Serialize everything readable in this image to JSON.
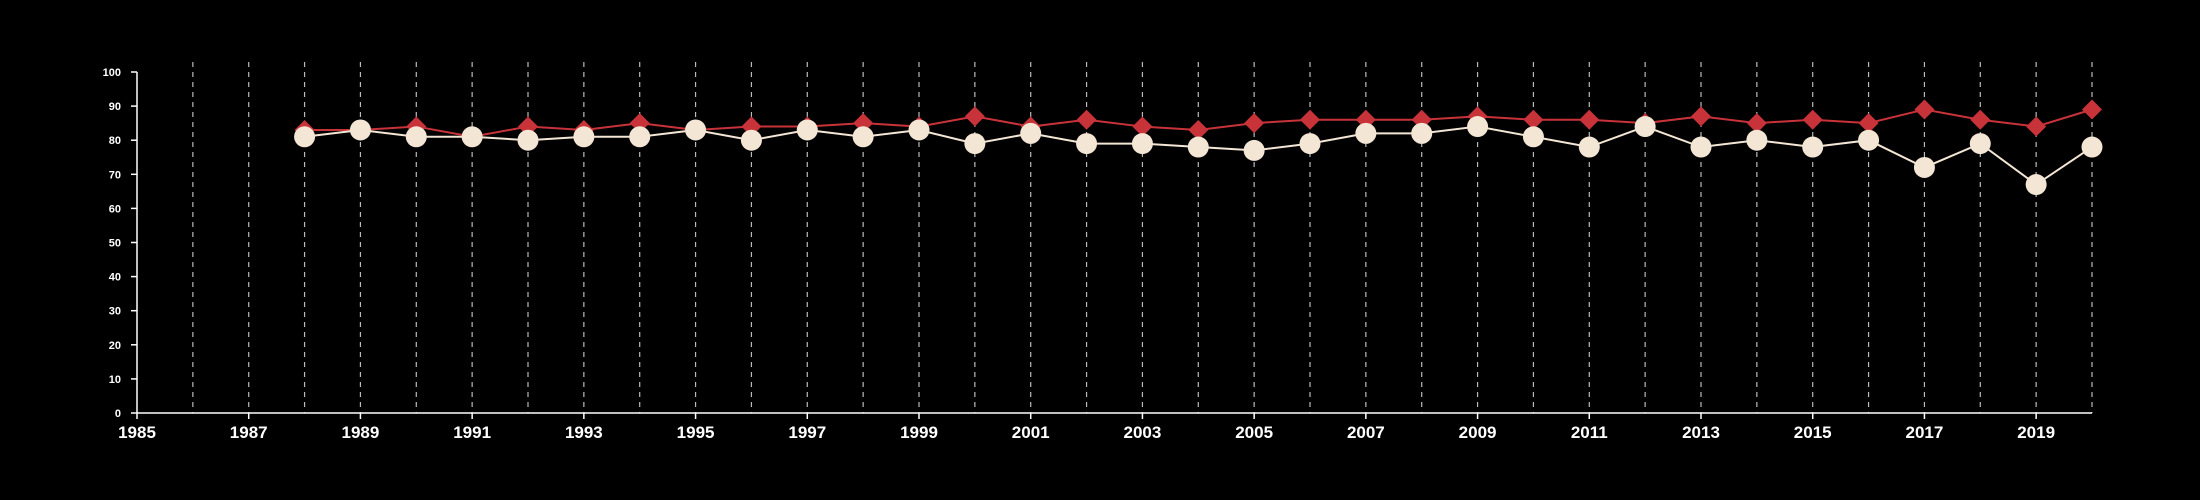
{
  "chart_data": {
    "type": "line",
    "title": "",
    "xlabel": "",
    "ylabel": "",
    "xlim": [
      1985,
      2020
    ],
    "ylim": [
      0,
      100
    ],
    "yticks": [
      0,
      10,
      20,
      30,
      40,
      50,
      60,
      70,
      80,
      90,
      100
    ],
    "xticks": [
      1985,
      1987,
      1989,
      1991,
      1993,
      1995,
      1997,
      1999,
      2001,
      2003,
      2005,
      2007,
      2009,
      2011,
      2013,
      2015,
      2017,
      2019
    ],
    "vgrid_years": [
      1986,
      1987,
      1988,
      1989,
      1990,
      1991,
      1992,
      1993,
      1994,
      1995,
      1996,
      1997,
      1998,
      1999,
      2000,
      2001,
      2002,
      2003,
      2004,
      2005,
      2006,
      2007,
      2008,
      2009,
      2010,
      2011,
      2012,
      2013,
      2014,
      2015,
      2016,
      2017,
      2018,
      2019,
      2020
    ],
    "grid": "vertical dashed",
    "background": "#000000",
    "axis_color": "#ffffff",
    "x": [
      1988,
      1989,
      1990,
      1991,
      1992,
      1993,
      1994,
      1995,
      1996,
      1997,
      1998,
      1999,
      2000,
      2001,
      2002,
      2003,
      2004,
      2005,
      2006,
      2007,
      2008,
      2009,
      2010,
      2011,
      2012,
      2013,
      2014,
      2015,
      2016,
      2017,
      2018,
      2019,
      2020
    ],
    "series": [
      {
        "marker": "diamond",
        "color": "#c8333a",
        "values": [
          83,
          83,
          84,
          81,
          84,
          83,
          85,
          83,
          84,
          84,
          85,
          84,
          87,
          84,
          86,
          84,
          83,
          85,
          86,
          86,
          86,
          87,
          86,
          86,
          85,
          87,
          85,
          86,
          85,
          89,
          86,
          84,
          89
        ]
      },
      {
        "marker": "circle",
        "color": "#f4e6d4",
        "values": [
          81,
          83,
          81,
          81,
          80,
          81,
          81,
          83,
          80,
          83,
          81,
          83,
          79,
          82,
          79,
          79,
          78,
          77,
          79,
          82,
          82,
          84,
          81,
          78,
          84,
          78,
          80,
          78,
          80,
          72,
          79,
          67,
          78
        ]
      }
    ]
  }
}
